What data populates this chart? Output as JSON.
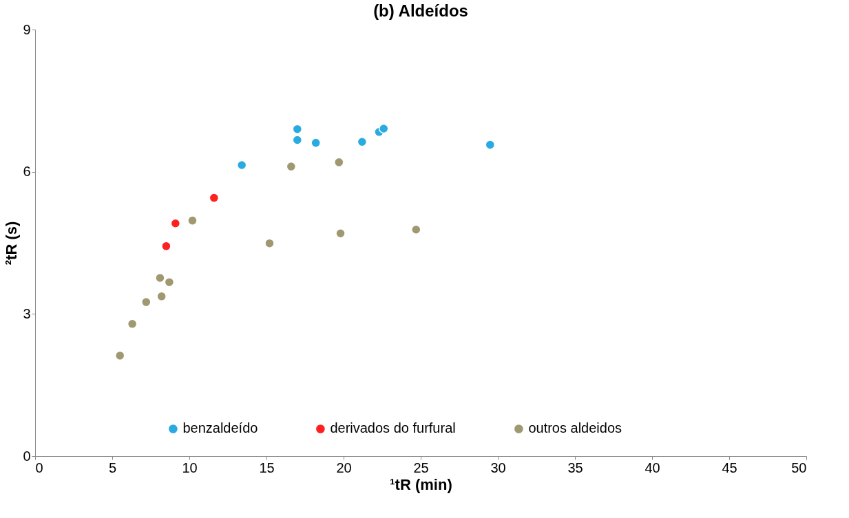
{
  "chart_data": {
    "type": "scatter",
    "title": "(b) Aldeídos",
    "xlabel": "¹tR (min)",
    "ylabel": "²tR (s)",
    "xlim": [
      0,
      50
    ],
    "xticks": [
      0,
      5,
      10,
      15,
      20,
      25,
      30,
      35,
      40,
      45,
      50
    ],
    "ylim": [
      0,
      9
    ],
    "yticks": [
      0,
      3,
      6,
      9
    ],
    "grid": false,
    "legend": "bottom",
    "marker": "circle",
    "series": [
      {
        "name": "benzaldeído",
        "color": "#29abe2",
        "x": [
          13.4,
          17.0,
          17.0,
          18.2,
          21.2,
          22.3,
          22.6,
          29.5
        ],
        "values": [
          6.14,
          6.9,
          6.67,
          6.61,
          6.63,
          6.84,
          6.91,
          6.57
        ]
      },
      {
        "name": "derivados do furfural",
        "color": "#ff2020",
        "x": [
          8.5,
          9.1,
          11.6
        ],
        "values": [
          4.43,
          4.91,
          5.45
        ]
      },
      {
        "name": "outros aldeidos",
        "color": "#a09870",
        "x": [
          5.5,
          6.3,
          7.2,
          8.1,
          8.2,
          8.7,
          10.2,
          15.2,
          16.6,
          19.7,
          19.8,
          24.7
        ],
        "values": [
          2.12,
          2.79,
          3.25,
          3.76,
          3.37,
          3.67,
          4.97,
          4.49,
          6.11,
          6.2,
          4.7,
          4.78
        ]
      }
    ]
  }
}
